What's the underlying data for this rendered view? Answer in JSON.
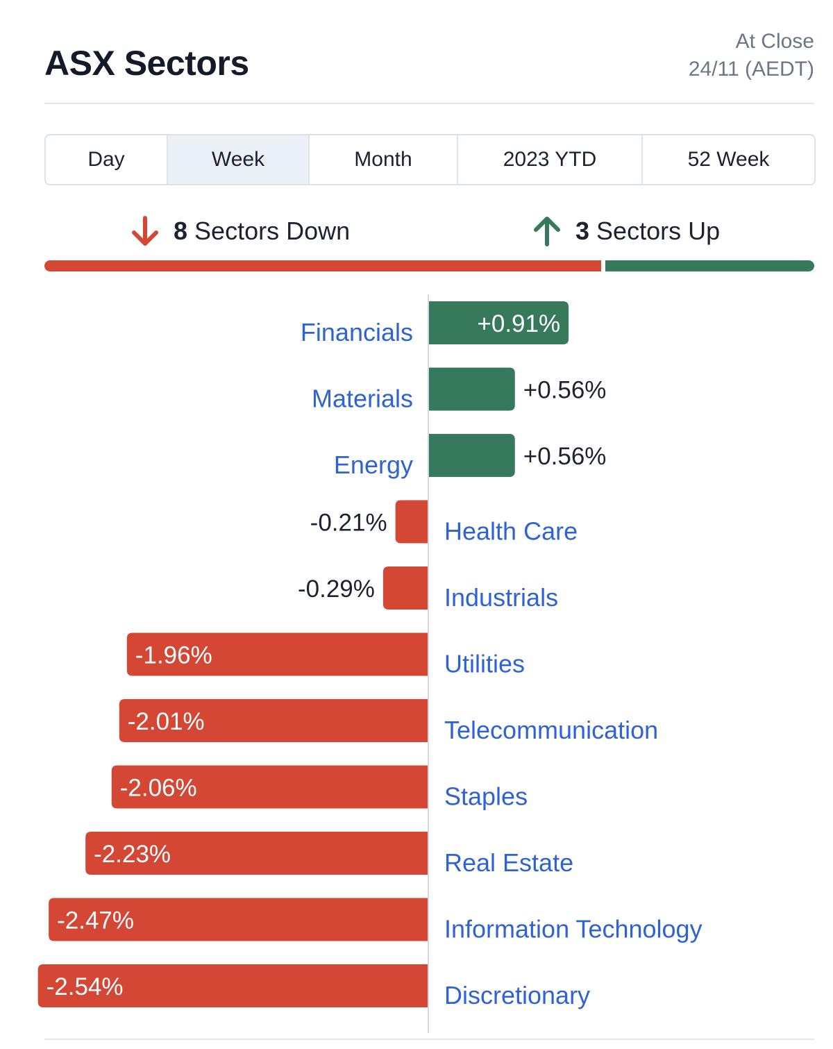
{
  "header": {
    "title": "ASX Sectors",
    "close_line1": "At Close",
    "close_line2": "24/11 (AEDT)"
  },
  "tabs": [
    {
      "label": "Day",
      "active": false
    },
    {
      "label": "Week",
      "active": true
    },
    {
      "label": "Month",
      "active": false
    },
    {
      "label": "2023 YTD",
      "active": false
    },
    {
      "label": "52 Week",
      "active": false
    }
  ],
  "summary": {
    "down_count": "8",
    "down_label": "Sectors Down",
    "up_count": "3",
    "up_label": "Sectors Up"
  },
  "colors": {
    "up": "#367a5b",
    "down": "#d44735",
    "label": "#2f62d3",
    "axis": "#d5d9de"
  },
  "chart_data": {
    "type": "bar",
    "orientation": "horizontal",
    "categories": [
      "Financials",
      "Materials",
      "Energy",
      "Health Care",
      "Industrials",
      "Utilities",
      "Telecommunication",
      "Staples",
      "Real Estate",
      "Information Technology",
      "Discretionary"
    ],
    "values": [
      0.91,
      0.56,
      0.56,
      -0.21,
      -0.29,
      -1.96,
      -2.01,
      -2.06,
      -2.23,
      -2.47,
      -2.54
    ],
    "value_labels": [
      "+0.91%",
      "+0.56%",
      "+0.56%",
      "-0.21%",
      "-0.29%",
      "-1.96%",
      "-2.01%",
      "-2.06%",
      "-2.23%",
      "-2.47%",
      "-2.54%"
    ],
    "unit": "%",
    "grid": false,
    "legend": "none"
  }
}
